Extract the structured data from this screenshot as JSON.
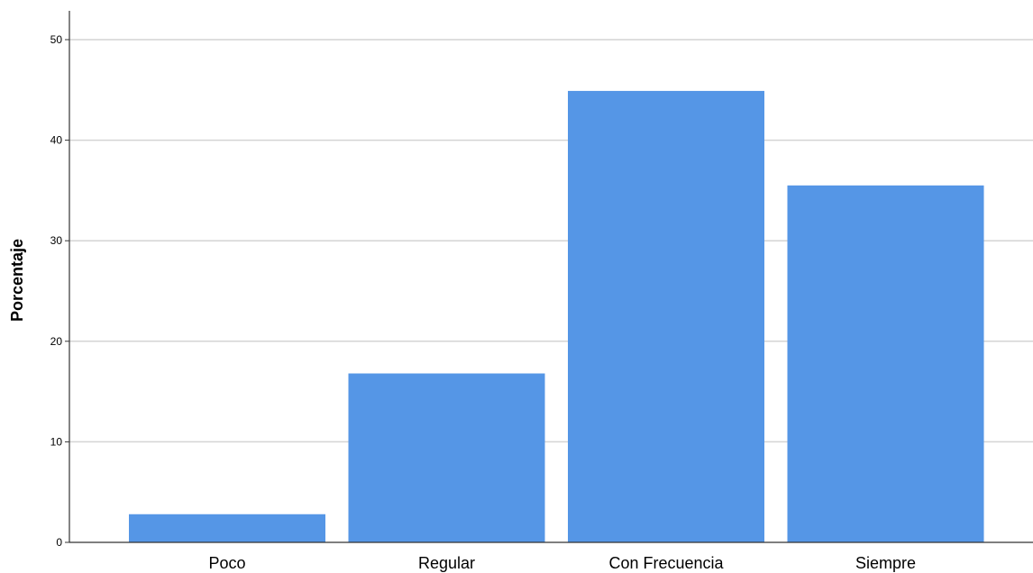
{
  "chart_data": {
    "type": "bar",
    "categories": [
      "Poco",
      "Regular",
      "Con Frecuencia",
      "Siempre"
    ],
    "values": [
      2.8,
      16.8,
      44.9,
      35.5
    ],
    "xlabel": "",
    "ylabel": "Porcentaje",
    "ylim": [
      0,
      52
    ],
    "yticks": [
      0,
      10,
      20,
      30,
      40,
      50
    ],
    "grid": true,
    "legend": "none",
    "colors": {
      "bar": "#5596e6",
      "grid": "#d4d4d4",
      "axis": "#333333"
    }
  }
}
